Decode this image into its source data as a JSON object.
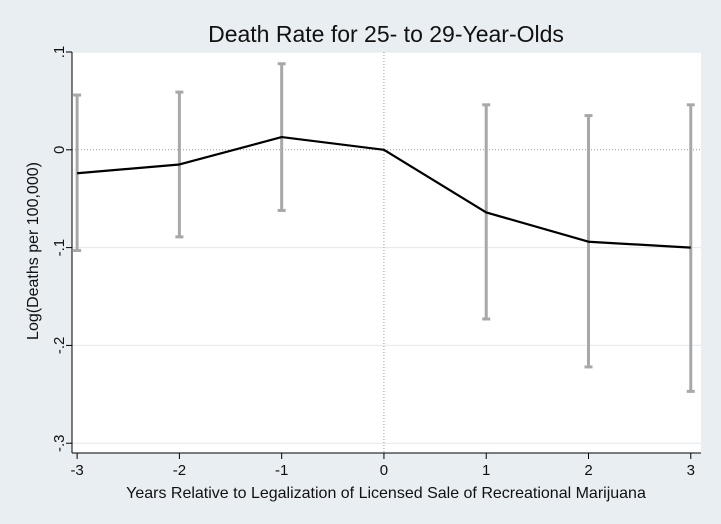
{
  "chart_data": {
    "type": "line",
    "title": "Death Rate for 25- to 29-Year-Olds",
    "xlabel": "Years Relative to Legalization of Licensed Sale of Recreational Marijuana",
    "ylabel": "Log(Deaths per 100,000)",
    "x": [
      -3,
      -2,
      -1,
      0,
      1,
      2,
      3
    ],
    "x_tick_labels": [
      "-3",
      "-2",
      "-1",
      "0",
      "1",
      "2",
      "3"
    ],
    "y_ticks": [
      0.1,
      0,
      -0.1,
      -0.2,
      -0.3
    ],
    "y_tick_labels": [
      ".1",
      "0",
      "-.1",
      "-.2",
      "-.3"
    ],
    "xlim": [
      -3.05,
      3.1
    ],
    "ylim": [
      -0.31,
      0.1
    ],
    "grid": true,
    "reference_lines": {
      "x": 0,
      "y": 0
    },
    "series": [
      {
        "values": [
          -0.024,
          -0.015,
          0.013,
          0.0,
          -0.064,
          -0.094,
          -0.1
        ],
        "ci_lower": [
          -0.103,
          -0.089,
          -0.062,
          0.0,
          -0.173,
          -0.222,
          -0.247
        ],
        "ci_upper": [
          0.056,
          0.059,
          0.088,
          0.0,
          0.046,
          0.035,
          0.046
        ]
      }
    ],
    "colors": {
      "line": "#000000",
      "error_bars": "#a8a8a8",
      "plot_background": "#ffffff",
      "outer_background": "#e9eef2",
      "grid": "#e3e8eb",
      "reference_line": "#9a9a9a"
    }
  }
}
